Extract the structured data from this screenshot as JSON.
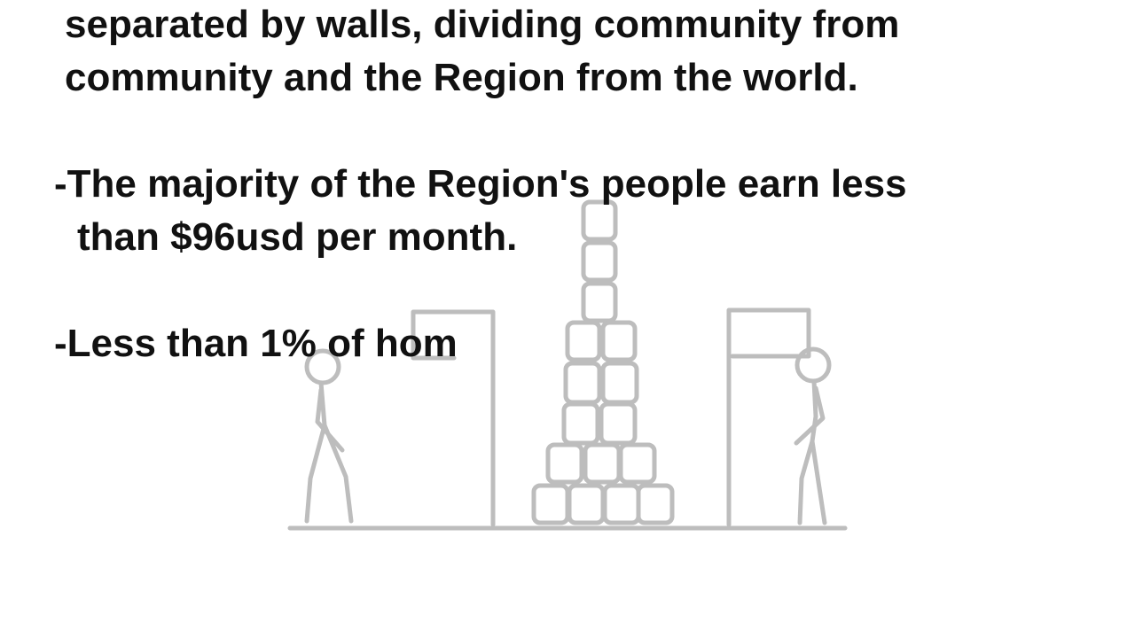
{
  "slide": {
    "lines": [
      "separated by walls, dividing community from",
      "community and the Region from the world.",
      "-The majority of the Region's people earn less",
      "than $96usd per month.",
      "-Less than 1% of hom"
    ]
  },
  "illustration": {
    "stroke_color": "#bdbdbd",
    "figures": [
      "stick-figure-left",
      "stick-figure-right"
    ],
    "stacked_blocks_rows": [
      1,
      1,
      1,
      2,
      2,
      2,
      3,
      4
    ]
  }
}
